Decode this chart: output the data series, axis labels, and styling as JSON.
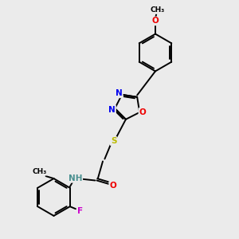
{
  "background_color": "#ebebeb",
  "bond_color": "#000000",
  "atom_colors": {
    "N": "#0000ee",
    "O": "#ee0000",
    "S": "#bbbb00",
    "F": "#cc00cc",
    "H": "#4a9090",
    "C": "#000000"
  },
  "font_size": 7.5,
  "lw": 1.4,
  "xlim": [
    0,
    10
  ],
  "ylim": [
    0,
    10
  ]
}
